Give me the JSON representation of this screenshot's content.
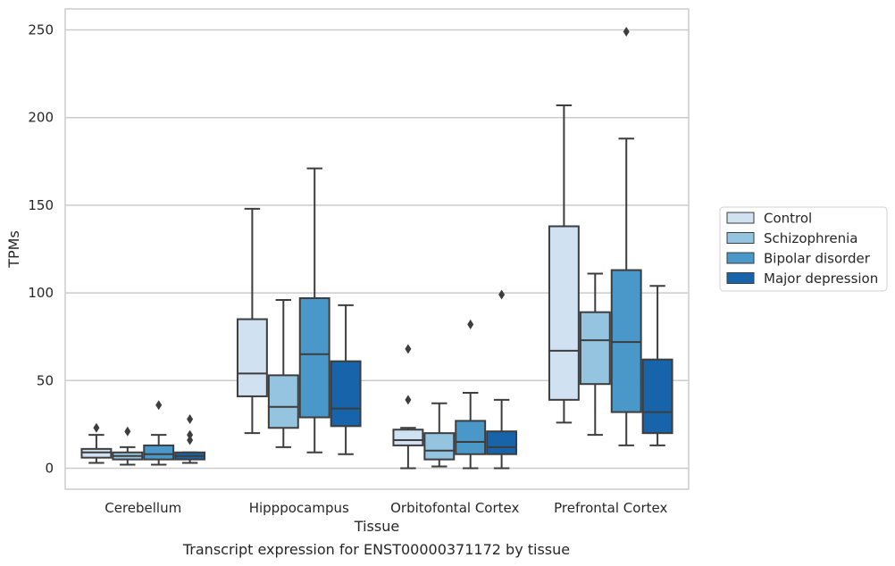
{
  "caption": "Transcript expression for ENST00000371172 by tissue",
  "chart_data": {
    "type": "boxplot",
    "title": "",
    "xlabel": "Tissue",
    "ylabel": "TPMs",
    "ylim": [
      -12,
      262
    ],
    "yticks": [
      0,
      50,
      100,
      150,
      200,
      250
    ],
    "grid": true,
    "legend_position": "right",
    "categories": [
      "Cerebellum",
      "Hipppocampus",
      "Orbitofontal Cortex",
      "Prefrontal Cortex"
    ],
    "series": [
      {
        "name": "Control",
        "color": "#d0e1f2",
        "boxes": [
          {
            "whisker_low": 3,
            "q1": 6,
            "median": 9,
            "q3": 11,
            "whisker_high": 19,
            "outliers": [
              23
            ]
          },
          {
            "whisker_low": 20,
            "q1": 41,
            "median": 54,
            "q3": 85,
            "whisker_high": 148,
            "outliers": []
          },
          {
            "whisker_low": 0,
            "q1": 13,
            "median": 16,
            "q3": 22,
            "whisker_high": 23,
            "outliers": [
              39,
              68
            ]
          },
          {
            "whisker_low": 26,
            "q1": 39,
            "median": 67,
            "q3": 138,
            "whisker_high": 207,
            "outliers": []
          }
        ]
      },
      {
        "name": "Schizophrenia",
        "color": "#94c4df",
        "boxes": [
          {
            "whisker_low": 2,
            "q1": 5,
            "median": 7,
            "q3": 9,
            "whisker_high": 12,
            "outliers": [
              21
            ]
          },
          {
            "whisker_low": 12,
            "q1": 23,
            "median": 35,
            "q3": 53,
            "whisker_high": 96,
            "outliers": []
          },
          {
            "whisker_low": 1,
            "q1": 5,
            "median": 10,
            "q3": 20,
            "whisker_high": 37,
            "outliers": []
          },
          {
            "whisker_low": 19,
            "q1": 48,
            "median": 73,
            "q3": 89,
            "whisker_high": 111,
            "outliers": []
          }
        ]
      },
      {
        "name": "Bipolar disorder",
        "color": "#4a98c9",
        "boxes": [
          {
            "whisker_low": 2,
            "q1": 5,
            "median": 8,
            "q3": 13,
            "whisker_high": 19,
            "outliers": [
              36
            ]
          },
          {
            "whisker_low": 9,
            "q1": 29,
            "median": 65,
            "q3": 97,
            "whisker_high": 171,
            "outliers": []
          },
          {
            "whisker_low": 0,
            "q1": 8,
            "median": 15,
            "q3": 27,
            "whisker_high": 43,
            "outliers": [
              82
            ]
          },
          {
            "whisker_low": 13,
            "q1": 32,
            "median": 72,
            "q3": 113,
            "whisker_high": 188,
            "outliers": [
              249
            ]
          }
        ]
      },
      {
        "name": "Major depression",
        "color": "#1764ab",
        "boxes": [
          {
            "whisker_low": 3,
            "q1": 5,
            "median": 7,
            "q3": 9,
            "whisker_high": 9,
            "outliers": [
              16,
              19,
              28
            ]
          },
          {
            "whisker_low": 8,
            "q1": 24,
            "median": 34,
            "q3": 61,
            "whisker_high": 93,
            "outliers": []
          },
          {
            "whisker_low": 0,
            "q1": 8,
            "median": 12,
            "q3": 21,
            "whisker_high": 39,
            "outliers": [
              99
            ]
          },
          {
            "whisker_low": 13,
            "q1": 20,
            "median": 32,
            "q3": 62,
            "whisker_high": 104,
            "outliers": []
          }
        ]
      }
    ]
  }
}
